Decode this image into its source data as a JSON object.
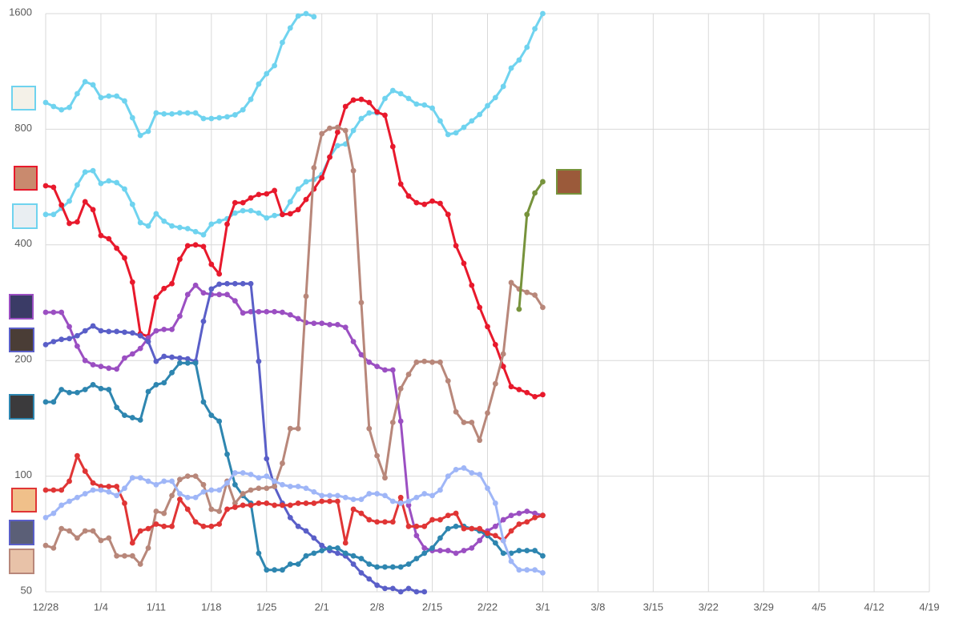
{
  "chart_data": {
    "type": "line",
    "log_scale_y": true,
    "grid": true,
    "x": [
      0,
      1,
      2,
      3,
      4,
      5,
      6,
      7,
      8,
      9,
      10,
      11,
      12,
      13,
      14,
      15,
      16,
      17,
      18,
      19,
      20,
      21,
      22,
      23,
      24,
      25,
      26,
      27,
      28,
      29,
      30,
      31,
      32,
      33,
      34,
      35,
      36,
      37,
      38,
      39,
      40,
      41,
      42,
      43,
      44,
      45,
      46,
      47,
      48,
      49,
      50,
      51,
      52,
      53,
      54,
      55,
      56,
      57,
      58,
      59,
      60,
      61,
      62,
      63
    ],
    "xlim": [
      0,
      112
    ],
    "xticks": [
      {
        "value": 0,
        "label": "12/28"
      },
      {
        "value": 7,
        "label": "1/4"
      },
      {
        "value": 14,
        "label": "1/11"
      },
      {
        "value": 21,
        "label": "1/18"
      },
      {
        "value": 28,
        "label": "1/25"
      },
      {
        "value": 35,
        "label": "2/1"
      },
      {
        "value": 42,
        "label": "2/8"
      },
      {
        "value": 49,
        "label": "2/15"
      },
      {
        "value": 56,
        "label": "2/22"
      },
      {
        "value": 63,
        "label": "3/1"
      },
      {
        "value": 70,
        "label": "3/8"
      },
      {
        "value": 77,
        "label": "3/15"
      },
      {
        "value": 84,
        "label": "3/22"
      },
      {
        "value": 91,
        "label": "3/29"
      },
      {
        "value": 98,
        "label": "4/5"
      },
      {
        "value": 105,
        "label": "4/12"
      },
      {
        "value": 112,
        "label": "4/19"
      }
    ],
    "ylim": [
      50,
      1600
    ],
    "yticks": [
      50,
      100,
      200,
      400,
      800,
      1600
    ],
    "series": [
      {
        "color": "#6fd3ef",
        "values": [
          939,
          917,
          899,
          912,
          990,
          1064,
          1044,
          967,
          976,
          976,
          948,
          857,
          771,
          790,
          882,
          877,
          877,
          882,
          882,
          882,
          853,
          853,
          857,
          862,
          872,
          899,
          957,
          1049,
          1116,
          1171,
          1346,
          1468,
          1577,
          1600,
          1570,
          null,
          null,
          null,
          null,
          null,
          null,
          null,
          null,
          null,
          null,
          null,
          null,
          null,
          null,
          null,
          null,
          null,
          null,
          null,
          null,
          null,
          null,
          null,
          null,
          null,
          null,
          null,
          null,
          null
        ]
      },
      {
        "color": "#6fd3ef",
        "values": [
          480,
          480,
          498,
          520,
          573,
          619,
          624,
          578,
          587,
          581,
          559,
          510,
          457,
          448,
          482,
          461,
          448,
          444,
          441,
          433,
          425,
          453,
          461,
          468,
          484,
          491,
          491,
          484,
          470,
          477,
          480,
          518,
          559,
          584,
          592,
          610,
          677,
          725,
          732,
          794,
          853,
          882,
          882,
          962,
          1009,
          990,
          962,
          930,
          925,
          908,
          841,
          775,
          783,
          809,
          841,
          874,
          921,
          967,
          1034,
          1154,
          1211,
          1308,
          1461,
          1600
        ]
      },
      {
        "color": "#e8192c",
        "values": [
          570,
          565,
          508,
          455,
          459,
          518,
          494,
          423,
          415,
          392,
          370,
          320,
          235,
          231,
          292,
          308,
          317,
          367,
          398,
          400,
          396,
          356,
          336,
          453,
          515,
          515,
          530,
          541,
          543,
          554,
          480,
          482,
          494,
          525,
          559,
          598,
          677,
          786,
          917,
          953,
          957,
          939,
          887,
          870,
          721,
          576,
          536,
          515,
          510,
          520,
          513,
          480,
          398,
          358,
          314,
          275,
          245,
          220,
          193,
          171,
          168,
          165,
          161,
          163
        ]
      },
      {
        "color": "#9b4fc2",
        "values": [
          267,
          267,
          267,
          245,
          218,
          200,
          195,
          193,
          191,
          190,
          203,
          208,
          215,
          229,
          239,
          241,
          241,
          261,
          297,
          314,
          300,
          297,
          297,
          297,
          286,
          266,
          268,
          268,
          268,
          268,
          267,
          263,
          257,
          251,
          250,
          250,
          248,
          248,
          244,
          224,
          207,
          198,
          193,
          189,
          189,
          139,
          84,
          70,
          65,
          64,
          64,
          64,
          63,
          64,
          65,
          68,
          72,
          74,
          77,
          79,
          80,
          81,
          80,
          79
        ]
      },
      {
        "color": "#5a5fc8",
        "values": [
          220,
          224,
          227,
          228,
          232,
          239,
          246,
          239,
          238,
          238,
          237,
          236,
          232,
          224,
          199,
          205,
          204,
          203,
          202,
          199,
          253,
          307,
          316,
          317,
          317,
          317,
          317,
          199,
          111,
          94,
          85,
          78,
          74,
          72,
          69,
          66,
          64,
          63,
          62,
          59,
          56,
          54,
          52,
          51,
          51,
          50,
          51,
          50,
          50,
          null,
          null,
          null,
          null,
          null,
          null,
          null,
          null,
          null,
          null,
          null,
          null,
          null,
          null,
          null
        ]
      },
      {
        "color": "#2e86b0",
        "values": [
          156,
          156,
          168,
          165,
          165,
          168,
          173,
          169,
          168,
          151,
          144,
          142,
          140,
          166,
          173,
          175,
          186,
          197,
          197,
          197,
          156,
          144,
          139,
          114,
          95,
          89,
          85,
          63,
          57,
          57,
          57,
          59,
          59,
          62,
          63,
          64,
          65,
          65,
          63,
          62,
          61,
          59,
          58,
          58,
          58,
          58,
          59,
          61,
          63,
          65,
          69,
          73,
          74,
          74,
          73,
          72,
          70,
          67,
          63,
          63,
          64,
          64,
          64,
          62
        ]
      },
      {
        "color": "#b8877a",
        "values": [
          66,
          65,
          73,
          72,
          69,
          72,
          72,
          68,
          69,
          62,
          62,
          62,
          59,
          65,
          81,
          80,
          89,
          98,
          100,
          100,
          95,
          82,
          81,
          97,
          85,
          90,
          92,
          93,
          93,
          94,
          108,
          133,
          133,
          294,
          635,
          779,
          805,
          809,
          794,
          624,
          283,
          133,
          113,
          99,
          138,
          169,
          184,
          198,
          199,
          198,
          198,
          177,
          147,
          138,
          138,
          124,
          146,
          174,
          208,
          319,
          307,
          301,
          296,
          275
        ]
      },
      {
        "color": "#e03535",
        "values": [
          92,
          92,
          92,
          97,
          113,
          103,
          96,
          94,
          94,
          94,
          85,
          67,
          72,
          73,
          75,
          74,
          74,
          87,
          82,
          76,
          74,
          74,
          75,
          82,
          83,
          84,
          84,
          85,
          85,
          84,
          84,
          84,
          85,
          85,
          85,
          86,
          86,
          86,
          67,
          82,
          80,
          77,
          76,
          76,
          76,
          88,
          74,
          74,
          74,
          77,
          77,
          79,
          80,
          73,
          73,
          73,
          71,
          70,
          68,
          72,
          75,
          76,
          78,
          79
        ]
      },
      {
        "color": "#9fb6f7",
        "values": [
          78,
          80,
          84,
          86,
          88,
          90,
          92,
          92,
          91,
          89,
          93,
          99,
          99,
          97,
          95,
          97,
          97,
          90,
          88,
          88,
          91,
          92,
          92,
          96,
          102,
          102,
          101,
          99,
          100,
          97,
          95,
          94,
          94,
          93,
          91,
          89,
          89,
          89,
          88,
          87,
          87,
          90,
          90,
          89,
          86,
          85,
          86,
          88,
          90,
          89,
          92,
          100,
          104,
          105,
          102,
          101,
          93,
          85,
          68,
          60,
          57,
          57,
          57,
          56
        ]
      },
      {
        "color": "#77933c",
        "values": [
          null,
          null,
          null,
          null,
          null,
          null,
          null,
          null,
          null,
          null,
          null,
          null,
          null,
          null,
          null,
          null,
          null,
          null,
          null,
          null,
          null,
          null,
          null,
          null,
          null,
          null,
          null,
          null,
          null,
          null,
          null,
          null,
          null,
          null,
          null,
          null,
          null,
          null,
          null,
          null,
          null,
          null,
          null,
          null,
          null,
          null,
          null,
          null,
          null,
          null,
          null,
          null,
          null,
          null,
          null,
          null,
          null,
          null,
          null,
          null,
          272,
          480,
          546,
          584
        ]
      }
    ]
  }
}
